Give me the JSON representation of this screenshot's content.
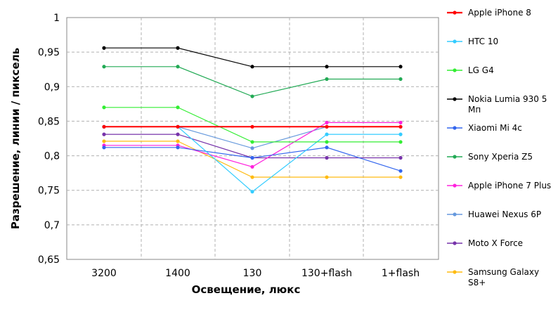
{
  "chart_data": {
    "type": "line",
    "title": "",
    "xlabel": "Освещение,  люкс",
    "ylabel": "Разрешение,  линии / пиксель",
    "categories": [
      "3200",
      "1400",
      "130",
      "130+flash",
      "1+flash"
    ],
    "ylim": [
      0.65,
      1.0
    ],
    "yticks": [
      "0,65",
      "0,7",
      "0,75",
      "0,8",
      "0,85",
      "0,9",
      "0,95",
      "1"
    ],
    "ytick_values": [
      0.65,
      0.7,
      0.75,
      0.8,
      0.85,
      0.9,
      0.95,
      1.0
    ],
    "grid": true,
    "legend_position": "right",
    "series": [
      {
        "name": "Apple iPhone 8",
        "color": "#ff0000",
        "values": [
          0.842,
          0.842,
          0.842,
          0.842,
          0.842
        ]
      },
      {
        "name": "HTC 10",
        "color": "#33ccff",
        "values": [
          0.842,
          0.842,
          0.748,
          0.831,
          0.831
        ]
      },
      {
        "name": "LG G4",
        "color": "#33ee33",
        "values": [
          0.87,
          0.87,
          0.82,
          0.82,
          0.82
        ]
      },
      {
        "name": "Nokia Lumia 930 5 Мп",
        "color": "#000000",
        "values": [
          0.956,
          0.956,
          0.929,
          0.929,
          0.929
        ]
      },
      {
        "name": "Xiaomi Mi 4c",
        "color": "#3366ee",
        "values": [
          0.812,
          0.812,
          0.797,
          0.812,
          0.778
        ]
      },
      {
        "name": "Sony Xperia Z5",
        "color": "#22aa55",
        "values": [
          0.929,
          0.929,
          0.886,
          0.911,
          0.911
        ]
      },
      {
        "name": "Apple iPhone 7 Plus",
        "color": "#ff22dd",
        "values": [
          0.815,
          0.815,
          0.784,
          0.848,
          0.848
        ]
      },
      {
        "name": "Huawei Nexus 6P",
        "color": "#6699dd",
        "values": [
          0.842,
          0.842,
          0.811,
          0.842,
          0.842
        ]
      },
      {
        "name": "Moto X Force",
        "color": "#7733aa",
        "values": [
          0.831,
          0.831,
          0.797,
          0.797,
          0.797
        ]
      },
      {
        "name": "Samsung Galaxy S8+",
        "color": "#ffbb11",
        "values": [
          0.821,
          0.821,
          0.769,
          0.769,
          0.769
        ]
      }
    ]
  }
}
